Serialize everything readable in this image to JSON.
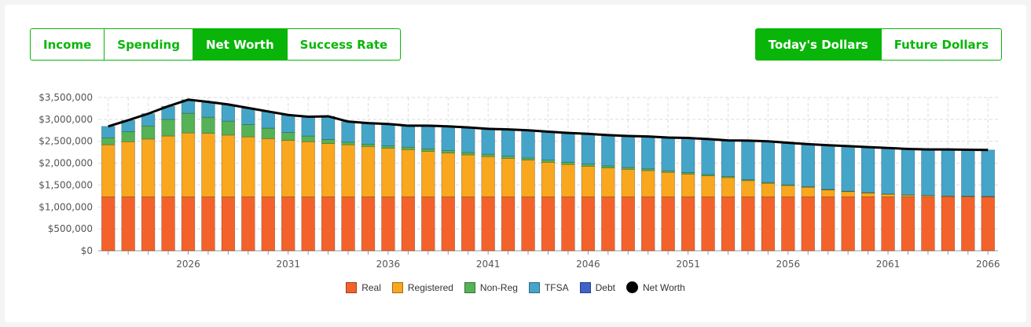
{
  "tabs": [
    {
      "label": "Income",
      "active": false
    },
    {
      "label": "Spending",
      "active": false
    },
    {
      "label": "Net Worth",
      "active": true
    },
    {
      "label": "Success Rate",
      "active": false
    }
  ],
  "dollar_mode": [
    {
      "label": "Today's Dollars",
      "active": true
    },
    {
      "label": "Future Dollars",
      "active": false
    }
  ],
  "colors": {
    "Real": "#f4622b",
    "Registered": "#f9a71e",
    "Non-Reg": "#55b256",
    "TFSA": "#45a5c8",
    "Debt": "#4062c9",
    "Net Worth": "#000000"
  },
  "chart_data": {
    "type": "bar",
    "stacked": true,
    "x": [
      2022,
      2023,
      2024,
      2025,
      2026,
      2027,
      2028,
      2029,
      2030,
      2031,
      2032,
      2033,
      2034,
      2035,
      2036,
      2037,
      2038,
      2039,
      2040,
      2041,
      2042,
      2043,
      2044,
      2045,
      2046,
      2047,
      2048,
      2049,
      2050,
      2051,
      2052,
      2053,
      2054,
      2055,
      2056,
      2057,
      2058,
      2059,
      2060,
      2061,
      2062,
      2063,
      2064,
      2065,
      2066
    ],
    "xtick_labels": [
      "2026",
      "2031",
      "2036",
      "2041",
      "2046",
      "2051",
      "2056",
      "2061",
      "2066"
    ],
    "ytick_labels": [
      "$0",
      "$500,000",
      "$1,000,000",
      "$1,500,000",
      "$2,000,000",
      "$2,500,000",
      "$3,000,000",
      "$3,500,000"
    ],
    "ylim": [
      0,
      3500000
    ],
    "grid": true,
    "legend_position": "bottom",
    "series": [
      {
        "name": "Real",
        "values": [
          1230000,
          1230000,
          1230000,
          1230000,
          1230000,
          1230000,
          1230000,
          1230000,
          1230000,
          1230000,
          1230000,
          1230000,
          1230000,
          1230000,
          1230000,
          1230000,
          1230000,
          1230000,
          1230000,
          1230000,
          1230000,
          1230000,
          1230000,
          1230000,
          1230000,
          1230000,
          1230000,
          1230000,
          1230000,
          1230000,
          1230000,
          1230000,
          1230000,
          1230000,
          1230000,
          1230000,
          1230000,
          1230000,
          1230000,
          1230000,
          1230000,
          1230000,
          1230000,
          1230000,
          1230000
        ]
      },
      {
        "name": "Registered",
        "values": [
          1190000,
          1260000,
          1320000,
          1390000,
          1460000,
          1450000,
          1410000,
          1370000,
          1330000,
          1290000,
          1260000,
          1220000,
          1190000,
          1150000,
          1110000,
          1080000,
          1040000,
          1000000,
          960000,
          920000,
          880000,
          840000,
          790000,
          740000,
          700000,
          660000,
          630000,
          600000,
          560000,
          520000,
          480000,
          440000,
          370000,
          310000,
          260000,
          220000,
          160000,
          120000,
          90000,
          60000,
          40000,
          30000,
          20000,
          15000,
          10000
        ]
      },
      {
        "name": "Non-Reg",
        "values": [
          160000,
          230000,
          300000,
          380000,
          450000,
          370000,
          320000,
          280000,
          240000,
          180000,
          130000,
          90000,
          60000,
          55000,
          55000,
          55000,
          55000,
          55000,
          55000,
          55000,
          50000,
          50000,
          50000,
          50000,
          50000,
          50000,
          40000,
          40000,
          35000,
          35000,
          30000,
          30000,
          25000,
          20000,
          15000,
          15000,
          10000,
          10000,
          8000,
          6000,
          5000,
          4000,
          3000,
          2000,
          1000
        ]
      },
      {
        "name": "TFSA",
        "values": [
          260000,
          260000,
          280000,
          300000,
          310000,
          350000,
          380000,
          380000,
          380000,
          400000,
          440000,
          530000,
          470000,
          480000,
          500000,
          490000,
          530000,
          555000,
          570000,
          580000,
          610000,
          630000,
          650000,
          670000,
          690000,
          700000,
          720000,
          740000,
          760000,
          790000,
          810000,
          820000,
          890000,
          940000,
          960000,
          970000,
          1010000,
          1030000,
          1040000,
          1050000,
          1050000,
          1050000,
          1060000,
          1060000,
          1060000
        ]
      },
      {
        "name": "Debt",
        "values": [
          0,
          0,
          0,
          0,
          0,
          0,
          0,
          0,
          0,
          0,
          0,
          0,
          0,
          0,
          0,
          0,
          0,
          0,
          0,
          0,
          0,
          0,
          0,
          0,
          0,
          0,
          0,
          0,
          0,
          0,
          0,
          0,
          0,
          0,
          0,
          0,
          0,
          0,
          0,
          0,
          0,
          0,
          0,
          0,
          0
        ]
      }
    ],
    "line_series": {
      "name": "Net Worth",
      "values": [
        2840000,
        2980000,
        3130000,
        3300000,
        3450000,
        3400000,
        3340000,
        3260000,
        3180000,
        3100000,
        3060000,
        3070000,
        2950000,
        2915000,
        2895000,
        2855000,
        2855000,
        2840000,
        2815000,
        2785000,
        2770000,
        2750000,
        2720000,
        2690000,
        2670000,
        2640000,
        2620000,
        2610000,
        2585000,
        2575000,
        2550000,
        2520000,
        2515000,
        2500000,
        2465000,
        2435000,
        2410000,
        2390000,
        2368000,
        2346000,
        2325000,
        2314000,
        2313000,
        2307000,
        2301000
      ]
    }
  }
}
